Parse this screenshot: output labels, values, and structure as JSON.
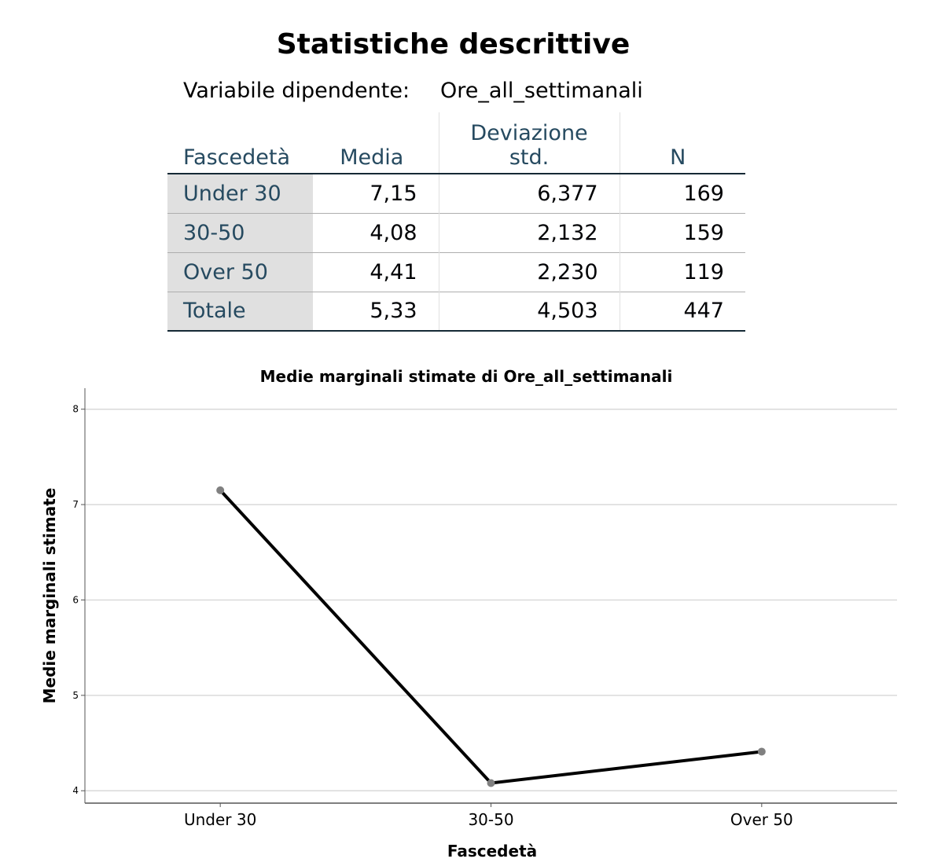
{
  "table": {
    "title": "Statistiche descrittive",
    "dependent_label": "Variabile dipendente:",
    "dependent_value": "Ore_all_settimanali",
    "headers": {
      "group": "Fascedetà",
      "mean": "Media",
      "sd_line1": "Deviazione",
      "sd_line2": "std.",
      "n": "N"
    },
    "rows": [
      {
        "label": "Under 30",
        "mean": "7,15",
        "sd": "6,377",
        "n": "169"
      },
      {
        "label": "30-50",
        "mean": "4,08",
        "sd": "2,132",
        "n": "159"
      },
      {
        "label": "Over 50",
        "mean": "4,41",
        "sd": "2,230",
        "n": "119"
      },
      {
        "label": "Totale",
        "mean": "5,33",
        "sd": "4,503",
        "n": "447"
      }
    ]
  },
  "chart_data": {
    "type": "line",
    "title": "Medie marginali stimate di Ore_all_settimanali",
    "xlabel": "Fascedetà",
    "ylabel": "Medie marginali stimate",
    "categories": [
      "Under 30",
      "30-50",
      "Over 50"
    ],
    "values": [
      7.15,
      4.08,
      4.41
    ],
    "ylim": [
      3.87,
      8.22
    ],
    "yticks": [
      4,
      5,
      6,
      7,
      8
    ],
    "grid": true,
    "line_color": "#000000",
    "marker_color": "#808080",
    "grid_color": "#d9d9d9"
  }
}
